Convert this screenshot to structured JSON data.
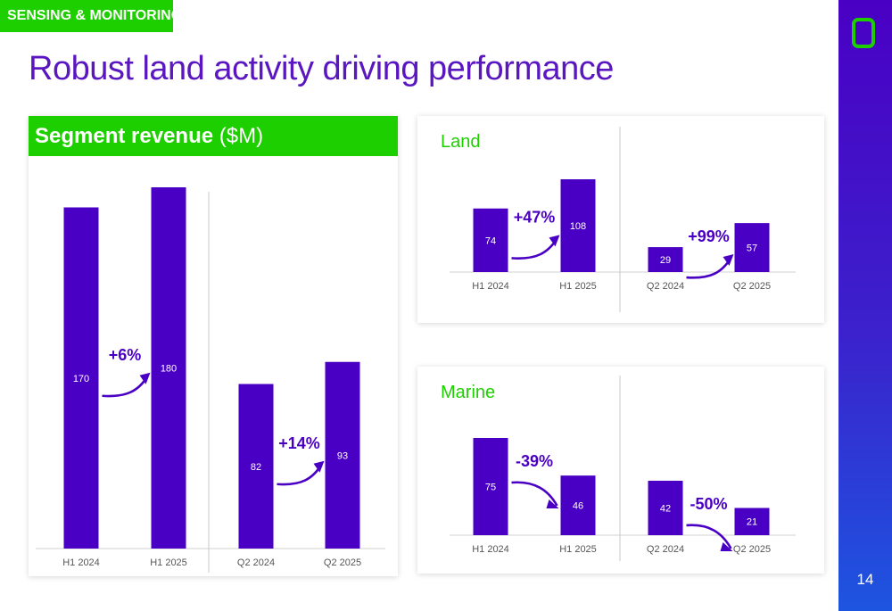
{
  "header": {
    "tag": "SENSING & MONITORING",
    "title": "Robust land activity driving performance",
    "page_number": "14"
  },
  "colors": {
    "bar": "#4a00c4",
    "accent_green": "#1ecf00",
    "sidebar_top": "#4a00c4",
    "sidebar_bottom": "#1d55e0"
  },
  "chart_data": [
    {
      "type": "bar",
      "title": "Segment revenue",
      "title_unit": "($M)",
      "categories": [
        "H1 2024",
        "H1 2025",
        "Q2 2024",
        "Q2 2025"
      ],
      "values": [
        170,
        180,
        82,
        93
      ],
      "changes": [
        "+6%",
        "+14%"
      ],
      "ylim": [
        0,
        180
      ]
    },
    {
      "type": "bar",
      "title": "Land",
      "categories": [
        "H1 2024",
        "H1 2025",
        "Q2 2024",
        "Q2 2025"
      ],
      "values": [
        74,
        108,
        29,
        57
      ],
      "changes": [
        "+47%",
        "+99%"
      ],
      "ylim": [
        0,
        108
      ]
    },
    {
      "type": "bar",
      "title": "Marine",
      "categories": [
        "H1 2024",
        "H1 2025",
        "Q2 2024",
        "Q2 2025"
      ],
      "values": [
        75,
        46,
        42,
        21
      ],
      "changes": [
        "-39%",
        "-50%"
      ],
      "ylim": [
        0,
        75
      ]
    }
  ]
}
